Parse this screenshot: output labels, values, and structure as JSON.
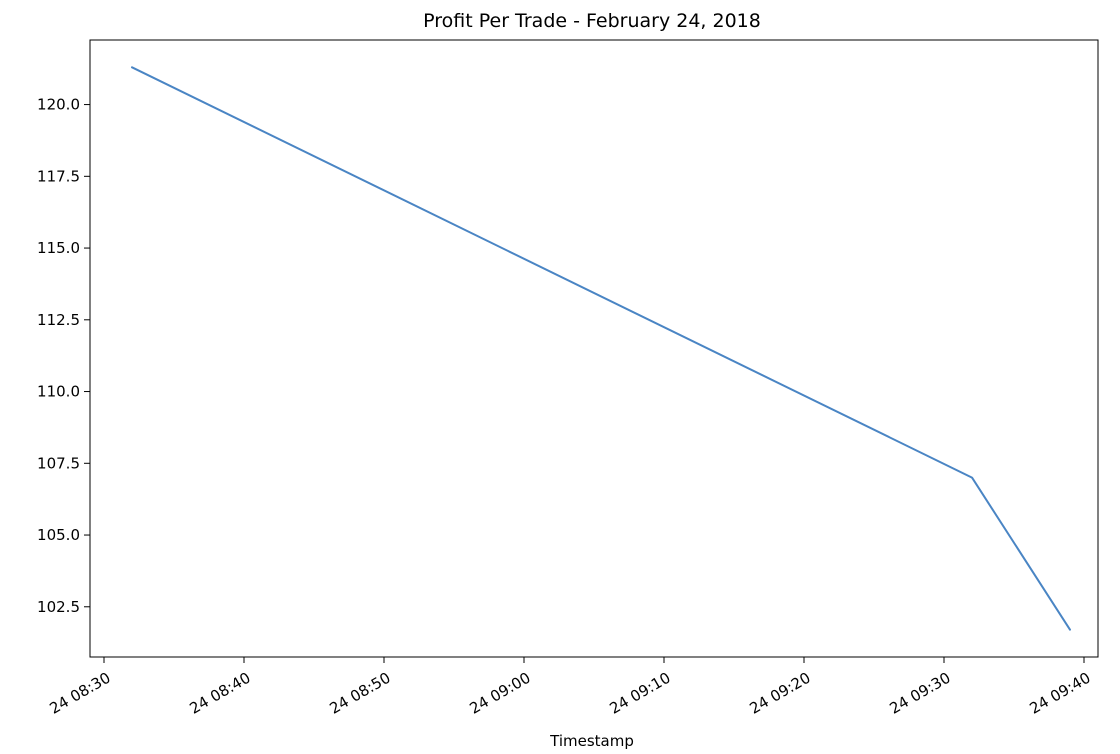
{
  "chart_data": {
    "type": "line",
    "title": "Profit Per Trade - February 24, 2018",
    "xlabel": "Timestamp",
    "ylabel": "",
    "x_ticks": [
      "24 08:30",
      "24 08:40",
      "24 08:50",
      "24 09:00",
      "24 09:10",
      "24 09:20",
      "24 09:30",
      "24 09:40"
    ],
    "y_ticks": [
      "102.5",
      "105.0",
      "107.5",
      "110.0",
      "112.5",
      "115.0",
      "117.5",
      "120.0"
    ],
    "xlim": [
      "2018-02-24 08:29",
      "2018-02-24 09:41"
    ],
    "ylim": [
      100.75,
      122.25
    ],
    "grid": false,
    "series": [
      {
        "name": "",
        "color": "#4a85c4",
        "points": [
          {
            "x": "2018-02-24 08:32",
            "y": 121.3
          },
          {
            "x": "2018-02-24 09:32",
            "y": 107.0
          },
          {
            "x": "2018-02-24 09:39",
            "y": 101.7
          }
        ]
      }
    ]
  }
}
